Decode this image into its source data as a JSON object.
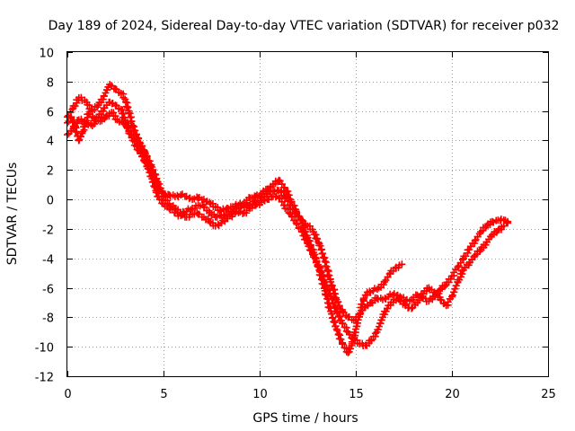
{
  "chart_data": {
    "type": "scatter",
    "title": "Day 189 of 2024, Sidereal Day-to-day VTEC variation (SDTVAR) for receiver p032",
    "xlabel": "GPS time / hours",
    "ylabel": "SDTVAR / TECUs",
    "xlim": [
      0,
      25
    ],
    "ylim": [
      -12,
      10
    ],
    "xticks": [
      0,
      5,
      10,
      15,
      20,
      25
    ],
    "yticks": [
      -12,
      -10,
      -8,
      -6,
      -4,
      -2,
      0,
      2,
      4,
      6,
      8,
      10
    ],
    "grid": true,
    "marker": "plus",
    "color": "#ff0000",
    "series": [
      {
        "points": [
          [
            0.0,
            5.6
          ],
          [
            0.3,
            6.2
          ],
          [
            0.6,
            6.9
          ],
          [
            1.0,
            6.6
          ],
          [
            1.3,
            6.0
          ],
          [
            1.6,
            6.4
          ],
          [
            1.9,
            7.0
          ],
          [
            2.2,
            7.8
          ],
          [
            2.5,
            7.5
          ],
          [
            2.8,
            7.2
          ],
          [
            3.0,
            6.8
          ],
          [
            3.2,
            6.0
          ],
          [
            3.4,
            5.0
          ],
          [
            3.6,
            4.4
          ],
          [
            3.8,
            3.8
          ],
          [
            4.0,
            3.3
          ],
          [
            4.2,
            2.6
          ],
          [
            4.4,
            1.8
          ],
          [
            4.6,
            1.2
          ],
          [
            4.8,
            0.6
          ],
          [
            5.0,
            0.4
          ],
          [
            5.3,
            0.3
          ],
          [
            5.6,
            0.2
          ],
          [
            5.9,
            0.3
          ],
          [
            6.2,
            0.2
          ],
          [
            6.5,
            0.0
          ],
          [
            6.8,
            0.1
          ],
          [
            7.1,
            0.0
          ],
          [
            7.4,
            -0.2
          ],
          [
            7.7,
            -0.5
          ],
          [
            8.0,
            -0.8
          ],
          [
            8.3,
            -0.6
          ],
          [
            8.6,
            -0.5
          ],
          [
            8.9,
            -0.4
          ],
          [
            9.2,
            -0.2
          ],
          [
            9.5,
            0.1
          ],
          [
            9.8,
            0.2
          ],
          [
            10.1,
            0.4
          ],
          [
            10.4,
            0.7
          ],
          [
            10.7,
            1.0
          ],
          [
            11.0,
            1.3
          ],
          [
            11.3,
            0.8
          ],
          [
            11.6,
            0.0
          ],
          [
            11.9,
            -0.8
          ],
          [
            12.2,
            -1.6
          ],
          [
            12.5,
            -2.6
          ],
          [
            12.8,
            -3.6
          ],
          [
            13.1,
            -4.8
          ],
          [
            13.4,
            -6.2
          ],
          [
            13.7,
            -7.6
          ],
          [
            14.0,
            -8.8
          ],
          [
            14.3,
            -9.8
          ],
          [
            14.6,
            -10.4
          ],
          [
            14.8,
            -9.8
          ],
          [
            15.0,
            -8.8
          ],
          [
            15.2,
            -7.8
          ],
          [
            15.4,
            -6.8
          ],
          [
            15.6,
            -6.3
          ],
          [
            15.9,
            -6.2
          ],
          [
            16.2,
            -6.0
          ],
          [
            16.5,
            -5.6
          ],
          [
            16.8,
            -5.0
          ],
          [
            17.1,
            -4.6
          ],
          [
            17.4,
            -4.4
          ]
        ]
      },
      {
        "points": [
          [
            0.0,
            4.4
          ],
          [
            0.3,
            4.8
          ],
          [
            0.6,
            5.4
          ],
          [
            1.0,
            5.2
          ],
          [
            1.3,
            5.0
          ],
          [
            1.6,
            5.6
          ],
          [
            1.9,
            6.2
          ],
          [
            2.2,
            6.6
          ],
          [
            2.5,
            6.4
          ],
          [
            2.8,
            6.1
          ],
          [
            3.0,
            5.4
          ],
          [
            3.2,
            4.6
          ],
          [
            3.4,
            4.0
          ],
          [
            3.6,
            3.6
          ],
          [
            3.8,
            3.1
          ],
          [
            4.0,
            2.6
          ],
          [
            4.2,
            2.1
          ],
          [
            4.4,
            1.4
          ],
          [
            4.6,
            0.6
          ],
          [
            4.8,
            0.0
          ],
          [
            5.0,
            -0.3
          ],
          [
            5.3,
            -0.6
          ],
          [
            5.6,
            -0.9
          ],
          [
            5.9,
            -1.1
          ],
          [
            6.2,
            -1.2
          ],
          [
            6.5,
            -1.0
          ],
          [
            6.8,
            -1.0
          ],
          [
            7.1,
            -1.2
          ],
          [
            7.4,
            -1.5
          ],
          [
            7.7,
            -1.8
          ],
          [
            8.0,
            -1.6
          ],
          [
            8.3,
            -1.3
          ],
          [
            8.6,
            -1.0
          ],
          [
            8.9,
            -0.9
          ],
          [
            9.2,
            -0.9
          ],
          [
            9.5,
            -0.6
          ],
          [
            9.8,
            -0.4
          ],
          [
            10.1,
            -0.2
          ],
          [
            10.4,
            0.0
          ],
          [
            10.7,
            0.2
          ],
          [
            11.0,
            0.1
          ],
          [
            11.3,
            -0.4
          ],
          [
            11.6,
            -1.0
          ],
          [
            11.9,
            -1.6
          ],
          [
            12.2,
            -2.2
          ],
          [
            12.5,
            -3.0
          ],
          [
            12.8,
            -3.8
          ],
          [
            13.1,
            -4.6
          ],
          [
            13.4,
            -5.6
          ],
          [
            13.7,
            -6.6
          ],
          [
            14.0,
            -7.6
          ],
          [
            14.3,
            -8.4
          ],
          [
            14.6,
            -9.0
          ],
          [
            14.9,
            -9.5
          ],
          [
            15.2,
            -9.8
          ],
          [
            15.5,
            -9.9
          ],
          [
            15.8,
            -9.6
          ],
          [
            16.1,
            -9.0
          ],
          [
            16.4,
            -8.0
          ],
          [
            16.7,
            -7.2
          ],
          [
            17.0,
            -6.8
          ],
          [
            17.3,
            -6.9
          ],
          [
            17.6,
            -7.2
          ],
          [
            17.9,
            -7.4
          ],
          [
            18.2,
            -7.0
          ],
          [
            18.5,
            -6.4
          ],
          [
            18.8,
            -6.0
          ],
          [
            19.1,
            -6.3
          ],
          [
            19.4,
            -6.8
          ],
          [
            19.7,
            -7.2
          ],
          [
            20.0,
            -6.6
          ],
          [
            20.3,
            -5.6
          ],
          [
            20.6,
            -4.8
          ],
          [
            20.9,
            -4.3
          ],
          [
            21.2,
            -3.8
          ],
          [
            21.5,
            -3.4
          ],
          [
            21.8,
            -2.9
          ],
          [
            22.1,
            -2.4
          ],
          [
            22.4,
            -2.1
          ],
          [
            22.7,
            -1.8
          ],
          [
            22.9,
            -1.6
          ]
        ]
      },
      {
        "points": [
          [
            0.0,
            5.2
          ],
          [
            0.2,
            5.6
          ],
          [
            0.4,
            4.9
          ],
          [
            0.6,
            4.0
          ],
          [
            0.8,
            4.6
          ],
          [
            1.1,
            5.8
          ],
          [
            1.4,
            5.5
          ],
          [
            1.7,
            5.3
          ],
          [
            2.0,
            5.6
          ],
          [
            2.3,
            5.9
          ],
          [
            2.6,
            5.4
          ],
          [
            2.9,
            5.2
          ],
          [
            3.1,
            5.0
          ],
          [
            3.3,
            4.6
          ],
          [
            3.5,
            4.2
          ],
          [
            3.8,
            3.5
          ],
          [
            4.1,
            2.9
          ],
          [
            4.4,
            2.2
          ],
          [
            4.7,
            1.2
          ],
          [
            5.0,
            0.2
          ],
          [
            5.3,
            -0.3
          ],
          [
            5.6,
            -0.6
          ],
          [
            5.9,
            -0.9
          ],
          [
            6.2,
            -0.8
          ],
          [
            6.5,
            -0.6
          ],
          [
            6.8,
            -0.4
          ],
          [
            7.1,
            -0.5
          ],
          [
            7.4,
            -0.9
          ],
          [
            7.7,
            -1.2
          ],
          [
            8.0,
            -1.1
          ],
          [
            8.3,
            -1.0
          ],
          [
            8.6,
            -0.8
          ],
          [
            8.9,
            -0.6
          ],
          [
            9.2,
            -0.5
          ],
          [
            9.5,
            -0.3
          ],
          [
            9.8,
            -0.1
          ],
          [
            10.1,
            0.1
          ],
          [
            10.4,
            0.4
          ],
          [
            10.7,
            0.6
          ],
          [
            11.0,
            0.6
          ],
          [
            11.3,
            0.2
          ],
          [
            11.6,
            -0.4
          ],
          [
            11.9,
            -1.0
          ],
          [
            12.2,
            -1.4
          ],
          [
            12.5,
            -1.8
          ],
          [
            12.8,
            -2.2
          ],
          [
            13.1,
            -3.0
          ],
          [
            13.4,
            -4.2
          ],
          [
            13.7,
            -5.6
          ],
          [
            14.0,
            -6.8
          ],
          [
            14.3,
            -7.6
          ],
          [
            14.6,
            -8.0
          ],
          [
            14.9,
            -8.2
          ],
          [
            15.2,
            -7.8
          ],
          [
            15.5,
            -7.3
          ],
          [
            15.8,
            -7.0
          ],
          [
            16.1,
            -6.7
          ],
          [
            16.4,
            -6.8
          ],
          [
            16.7,
            -6.6
          ],
          [
            17.0,
            -6.4
          ],
          [
            17.3,
            -6.6
          ],
          [
            17.6,
            -6.9
          ],
          [
            17.9,
            -6.8
          ],
          [
            18.2,
            -6.5
          ],
          [
            18.5,
            -6.7
          ],
          [
            18.8,
            -6.9
          ],
          [
            19.1,
            -6.6
          ],
          [
            19.4,
            -6.1
          ],
          [
            19.7,
            -5.8
          ],
          [
            20.0,
            -5.2
          ],
          [
            20.3,
            -4.6
          ],
          [
            20.6,
            -4.0
          ],
          [
            20.9,
            -3.4
          ],
          [
            21.2,
            -2.8
          ],
          [
            21.5,
            -2.2
          ],
          [
            21.8,
            -1.8
          ],
          [
            22.1,
            -1.5
          ],
          [
            22.4,
            -1.4
          ],
          [
            22.7,
            -1.4
          ],
          [
            22.9,
            -1.5
          ]
        ]
      }
    ]
  }
}
